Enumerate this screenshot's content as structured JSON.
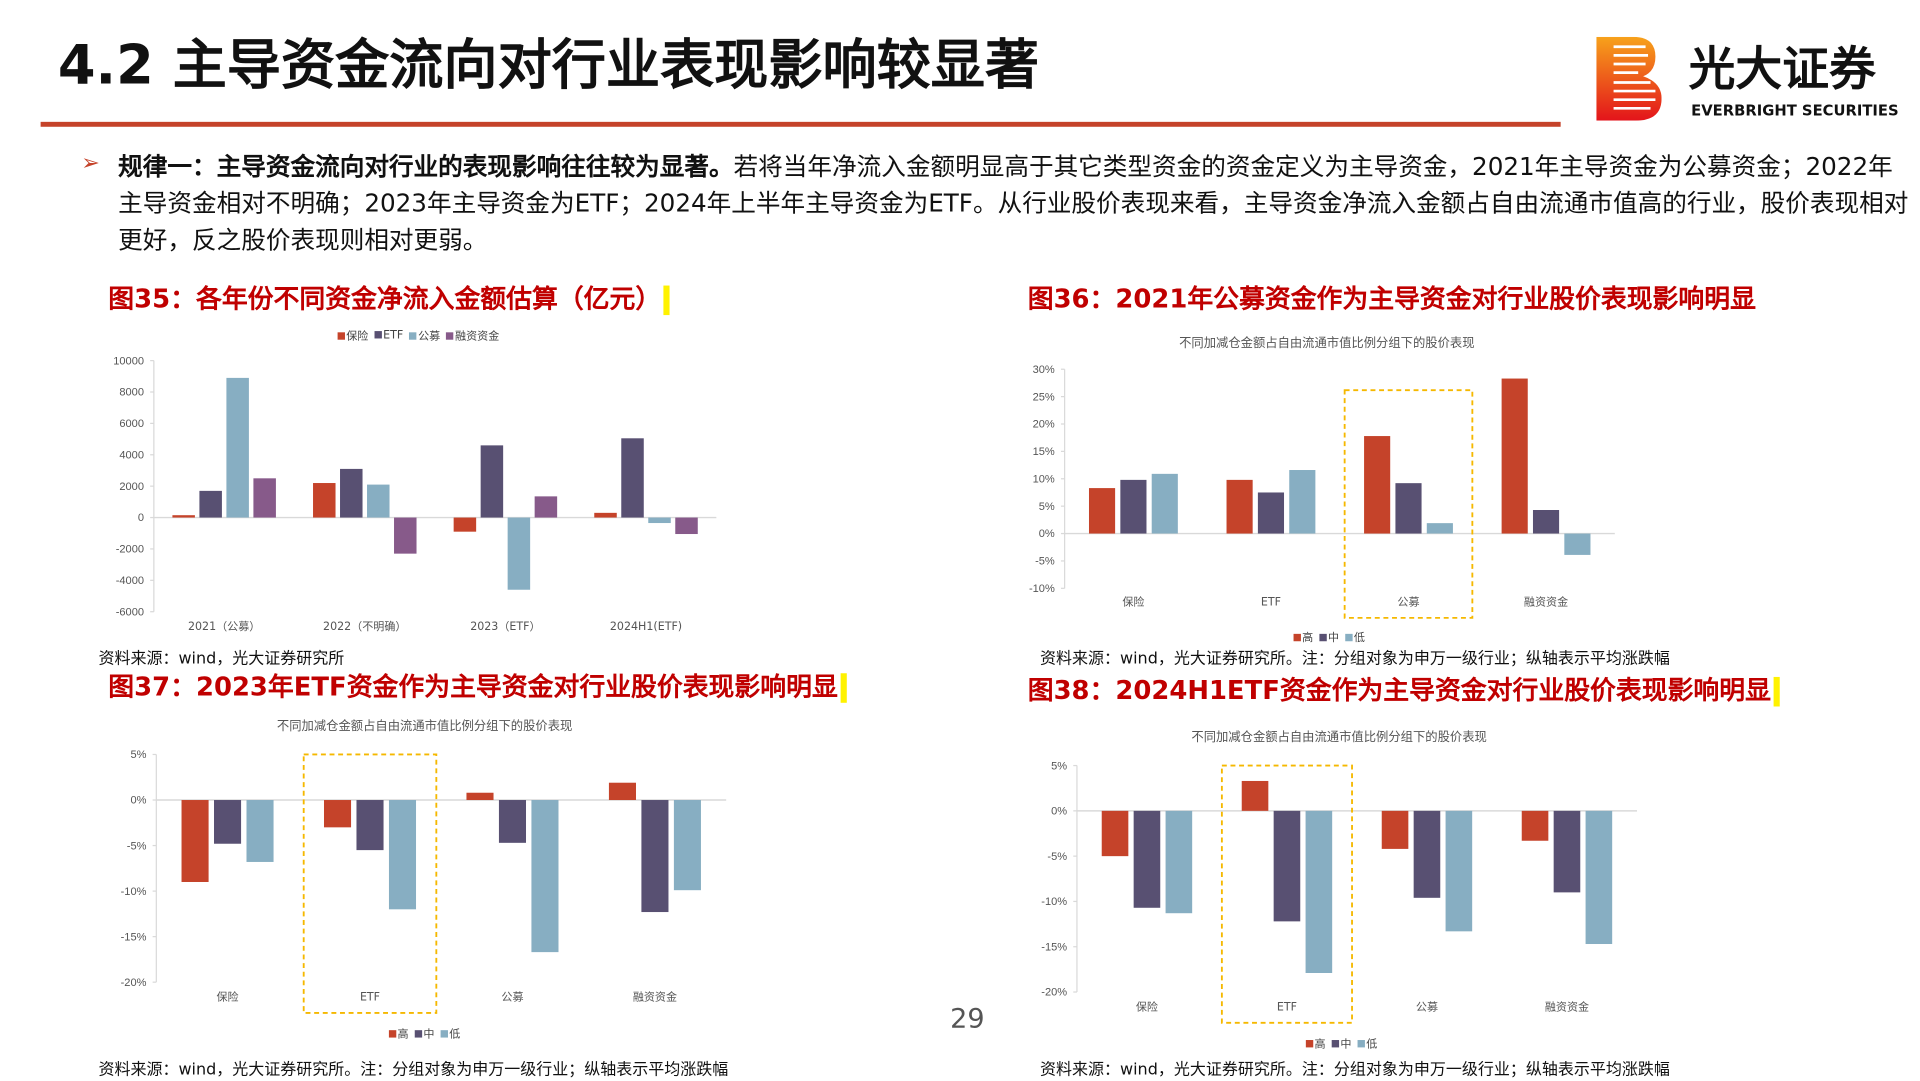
{
  "header": {
    "title": "4.2 主导资金流向对行业表现影响较显著",
    "logo_cn": "光大证券",
    "logo_en": "EVERBRIGHT SECURITIES"
  },
  "body": {
    "bullet_icon": "arrow-bullet-icon",
    "lead": "规律一：主导资金流向对行业的表现影响往往较为显著。",
    "text": "若将当年净流入金额明显高于其它类型资金的资金定义为主导资金，2021年主导资金为公募资金；2022年主导资金相对不明确；2023年主导资金为ETF；2024年上半年主导资金为ETF。从行业股价表现来看，主导资金净流入金额占自由流通市值高的行业，股价表现相对更好，反之股价表现则相对更弱。"
  },
  "page_number": "29",
  "colors": {
    "accent": "#C5432A",
    "title_red": "#C00000",
    "s1": "#C5432A",
    "s2": "#585072",
    "s3": "#87AEC2",
    "s4": "#875A8A",
    "highlight_box": "#F5B800"
  },
  "chart_data": [
    {
      "id": "fig35",
      "type": "bar",
      "title": "图35：各年份不同资金净流入金额估算（亿元）",
      "source": "资料来源：wind，光大证券研究所",
      "categories": [
        "2021（公募）",
        "2022（不明确）",
        "2023（ETF）",
        "2024H1(ETF)"
      ],
      "series": [
        {
          "name": "保险",
          "values": [
            150,
            2200,
            -900,
            300
          ]
        },
        {
          "name": "ETF",
          "values": [
            1700,
            3100,
            4600,
            5050
          ]
        },
        {
          "name": "公募",
          "values": [
            8900,
            2100,
            -4600,
            -350
          ]
        },
        {
          "name": "融资资金",
          "values": [
            2500,
            -2300,
            1350,
            -1050
          ]
        }
      ],
      "ylim": [
        -6000,
        10000
      ],
      "yticks": [
        10000,
        8000,
        6000,
        4000,
        2000,
        0,
        -2000,
        -4000,
        -6000
      ],
      "ytick_labels": [
        "10000",
        "8000",
        "6000",
        "4000",
        "2000",
        "0",
        "-2000",
        "-4000",
        "-6000"
      ],
      "legend": "top",
      "grid": false
    },
    {
      "id": "fig36",
      "type": "bar",
      "title": "图36：2021年公募资金作为主导资金对行业股价表现影响明显",
      "subtitle": "不同加减仓金额占自由流通市值比例分组下的股价表现",
      "source": "资料来源：wind，光大证券研究所。注：分组对象为申万一级行业；纵轴表示平均涨跌幅",
      "categories": [
        "保险",
        "ETF",
        "公募",
        "融资资金"
      ],
      "series": [
        {
          "name": "高",
          "values": [
            8.3,
            9.8,
            17.8,
            28.3
          ]
        },
        {
          "name": "中",
          "values": [
            9.8,
            7.5,
            9.2,
            4.3
          ]
        },
        {
          "name": "低",
          "values": [
            10.9,
            11.6,
            1.9,
            -3.9
          ]
        }
      ],
      "ylim": [
        -10,
        30
      ],
      "yticks": [
        30,
        25,
        20,
        15,
        10,
        5,
        0,
        -5,
        -10
      ],
      "ytick_labels": [
        "30%",
        "25%",
        "20%",
        "15%",
        "10%",
        "5%",
        "0%",
        "-5%",
        "-10%"
      ],
      "highlight_category": "公募",
      "legend": "bottom",
      "grid": false
    },
    {
      "id": "fig37",
      "type": "bar",
      "title": "图37：2023年ETF资金作为主导资金对行业股价表现影响明显",
      "subtitle": "不同加减仓金额占自由流通市值比例分组下的股价表现",
      "source": "资料来源：wind，光大证券研究所。注：分组对象为申万一级行业；纵轴表示平均涨跌幅",
      "categories": [
        "保险",
        "ETF",
        "公募",
        "融资资金"
      ],
      "series": [
        {
          "name": "高",
          "values": [
            -9.0,
            -3.0,
            0.8,
            1.9
          ]
        },
        {
          "name": "中",
          "values": [
            -4.8,
            -5.5,
            -4.7,
            -12.3
          ]
        },
        {
          "name": "低",
          "values": [
            -6.8,
            -12.0,
            -16.7,
            -9.9
          ]
        }
      ],
      "ylim": [
        -20,
        5
      ],
      "yticks": [
        5,
        0,
        -5,
        -10,
        -15,
        -20
      ],
      "ytick_labels": [
        "5%",
        "0%",
        "-5%",
        "-10%",
        "-15%",
        "-20%"
      ],
      "highlight_category": "ETF",
      "legend": "bottom",
      "grid": false
    },
    {
      "id": "fig38",
      "type": "bar",
      "title": "图38：2024H1ETF资金作为主导资金对行业股价表现影响明显",
      "subtitle": "不同加减仓金额占自由流通市值比例分组下的股价表现",
      "source": "资料来源：wind，光大证券研究所。注：分组对象为申万一级行业；纵轴表示平均涨跌幅",
      "categories": [
        "保险",
        "ETF",
        "公募",
        "融资资金"
      ],
      "series": [
        {
          "name": "高",
          "values": [
            -5.0,
            3.3,
            -4.2,
            -3.3
          ]
        },
        {
          "name": "中",
          "values": [
            -10.7,
            -12.2,
            -9.6,
            -9.0
          ]
        },
        {
          "name": "低",
          "values": [
            -11.3,
            -17.9,
            -13.3,
            -14.7
          ]
        }
      ],
      "ylim": [
        -20,
        5
      ],
      "yticks": [
        5,
        0,
        -5,
        -10,
        -15,
        -20
      ],
      "ytick_labels": [
        "5%",
        "0%",
        "-5%",
        "-10%",
        "-15%",
        "-20%"
      ],
      "highlight_category": "ETF",
      "legend": "bottom",
      "grid": false
    }
  ]
}
